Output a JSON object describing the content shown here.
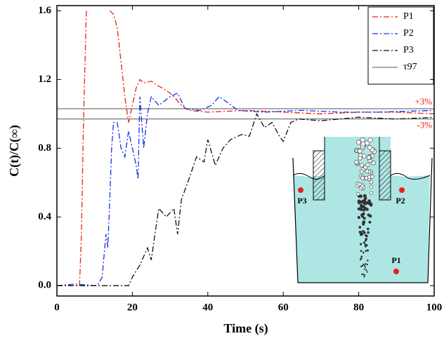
{
  "chart_data": {
    "type": "line",
    "xlabel": "Time (s)",
    "ylabel": "C(t)/C(∞)",
    "xlim": [
      0,
      100
    ],
    "ylim": [
      -0.06,
      1.63
    ],
    "xticks": [
      0,
      20,
      40,
      60,
      80,
      100
    ],
    "yticks": [
      {
        "value": 0,
        "label": "0.0"
      },
      0.4,
      0.8,
      1.2,
      1.6
    ],
    "series": [
      {
        "name": "P1",
        "color": "#e8201c",
        "dash": "8 3 2 3",
        "x": [
          0,
          3,
          6,
          6.5,
          7,
          7.5,
          7.8,
          null,
          14,
          15,
          16,
          17,
          18,
          19,
          20,
          21,
          22,
          23,
          25,
          27,
          28,
          30,
          31,
          33,
          35,
          40,
          50,
          60,
          70,
          80,
          90,
          100
        ],
        "values": [
          0,
          0,
          0,
          0.3,
          0.9,
          1.35,
          1.6,
          null,
          1.6,
          1.58,
          1.5,
          1.3,
          1.1,
          0.95,
          1.05,
          1.15,
          1.2,
          1.18,
          1.19,
          1.16,
          1.15,
          1.12,
          1.1,
          1.05,
          1.02,
          1.01,
          1.02,
          1.01,
          1.0,
          1.01,
          1.01,
          1.0
        ]
      },
      {
        "name": "P2",
        "color": "#1830e8",
        "dash": "8 3 2 3",
        "x": [
          0,
          5,
          10,
          11,
          12,
          13,
          13.5,
          14,
          14.5,
          15,
          16,
          17,
          18,
          19,
          20,
          21,
          21.5,
          22,
          23,
          24,
          25,
          27,
          30,
          32,
          34,
          38,
          41,
          43,
          45,
          48,
          55,
          65,
          75,
          85,
          100
        ],
        "values": [
          0,
          0.01,
          0,
          0.01,
          0.05,
          0.3,
          0.22,
          0.5,
          0.8,
          0.95,
          0.95,
          0.8,
          0.75,
          0.9,
          0.8,
          0.7,
          0.62,
          1.1,
          0.8,
          1.0,
          1.1,
          1.05,
          1.1,
          1.12,
          1.03,
          1.02,
          1.05,
          1.1,
          1.07,
          1.02,
          1.01,
          1.02,
          1.01,
          1.01,
          1.02
        ]
      },
      {
        "name": "P3",
        "color": "#111111",
        "dash": "8 3 2 3",
        "x": [
          0,
          10,
          19,
          20,
          22,
          24,
          25,
          26,
          27,
          29,
          31,
          32,
          33,
          35,
          37,
          39,
          40,
          42,
          44,
          46,
          49,
          51,
          53,
          55,
          57,
          59,
          60,
          62,
          64,
          70,
          80,
          90,
          100
        ],
        "values": [
          0,
          0,
          0,
          0.05,
          0.12,
          0.22,
          0.15,
          0.3,
          0.45,
          0.4,
          0.45,
          0.3,
          0.5,
          0.62,
          0.75,
          0.72,
          0.85,
          0.7,
          0.8,
          0.85,
          0.88,
          0.87,
          1.0,
          0.92,
          0.95,
          0.87,
          0.84,
          0.95,
          0.97,
          0.96,
          0.98,
          0.97,
          0.98
        ]
      }
    ],
    "reference_name": "τ97",
    "reference_lines": [
      {
        "value": 1.03,
        "label": "+3%"
      },
      {
        "value": 0.97,
        "label": "-3%"
      }
    ]
  },
  "inset": {
    "labels": [
      "P3",
      "P2",
      "P1"
    ]
  }
}
